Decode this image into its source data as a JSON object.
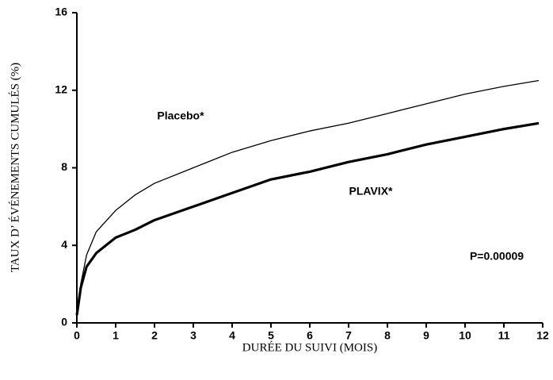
{
  "chart_data": {
    "type": "line",
    "xlabel": "DURÉE DU SUIVI (MOIS)",
    "ylabel": "TAUX D’  ÉVÉNEMENTS CUMULÉS (%)",
    "x": [
      0,
      0.1,
      0.25,
      0.5,
      1,
      1.5,
      2,
      3,
      4,
      5,
      6,
      7,
      8,
      9,
      10,
      11,
      11.9
    ],
    "series": [
      {
        "name": "Placebo*",
        "color": "#000000",
        "line_width": 1.3,
        "values": [
          0.4,
          2.0,
          3.5,
          4.7,
          5.8,
          6.6,
          7.2,
          8.0,
          8.8,
          9.4,
          9.9,
          10.3,
          10.8,
          11.3,
          11.8,
          12.2,
          12.5
        ]
      },
      {
        "name": "PLAVIX*",
        "color": "#000000",
        "line_width": 3.2,
        "values": [
          0.4,
          1.8,
          2.9,
          3.6,
          4.4,
          4.8,
          5.3,
          6.0,
          6.7,
          7.4,
          7.8,
          8.3,
          8.7,
          9.2,
          9.6,
          10.0,
          10.3
        ]
      }
    ],
    "annotations": [
      "P=0.00009"
    ],
    "xlim": [
      0,
      12
    ],
    "xticks": [
      0,
      1,
      2,
      3,
      4,
      5,
      6,
      7,
      8,
      9,
      10,
      11,
      12
    ],
    "ylim": [
      0,
      16
    ],
    "yticks": [
      0,
      4,
      8,
      12,
      16
    ],
    "grid": false
  }
}
